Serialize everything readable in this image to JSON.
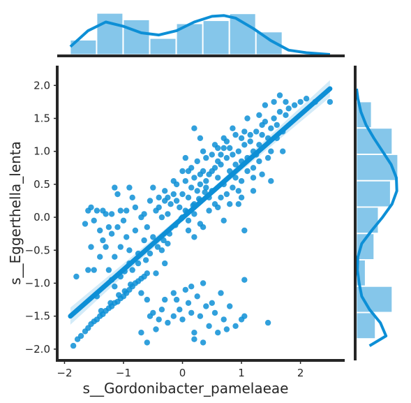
{
  "colors": {
    "accent": "#0d8fd6",
    "histogram_fill": "#85c6ea",
    "axis": "#262626"
  },
  "chart_data": {
    "type": "scatter",
    "kind": "jointplot-regression",
    "xlabel": "s__Gordonibacter_pamelaeae",
    "ylabel": "s__Eggerthella_lenta",
    "xlim": [
      -2.1,
      2.75
    ],
    "ylim": [
      -2.15,
      2.3
    ],
    "x_ticks": [
      -2,
      -1,
      0,
      1,
      2
    ],
    "y_ticks": [
      -2.0,
      -1.5,
      -1.0,
      -0.5,
      0.0,
      0.5,
      1.0,
      1.5,
      2.0
    ],
    "x_tick_labels": [
      "−2",
      "−1",
      "0",
      "1",
      "2"
    ],
    "y_tick_labels": [
      "−2.0",
      "−1.5",
      "−1.0",
      "−0.5",
      "0.0",
      "0.5",
      "1.0",
      "1.5",
      "2.0"
    ],
    "grid": false,
    "regression_line": {
      "x": [
        -1.9,
        2.5
      ],
      "y": [
        -1.5,
        1.95
      ]
    },
    "x_histogram": {
      "bin_edges": [
        -1.9,
        -1.45,
        -1.0,
        -0.55,
        -0.1,
        0.35,
        0.8,
        1.25,
        1.7
      ],
      "heights": [
        0.33,
        0.95,
        0.8,
        0.37,
        0.71,
        0.78,
        0.94,
        0.52
      ]
    },
    "x_kde": {
      "x": [
        -1.9,
        -1.6,
        -1.3,
        -1.0,
        -0.7,
        -0.4,
        -0.1,
        0.2,
        0.5,
        0.7,
        0.9,
        1.2,
        1.5,
        1.8,
        2.1,
        2.5
      ],
      "y": [
        0.18,
        0.55,
        0.75,
        0.65,
        0.5,
        0.45,
        0.55,
        0.75,
        0.88,
        0.9,
        0.84,
        0.6,
        0.32,
        0.1,
        0.04,
        0.0
      ]
    },
    "y_histogram": {
      "bin_edges": [
        -1.85,
        -1.45,
        -1.05,
        -0.65,
        -0.25,
        0.15,
        0.55,
        0.95,
        1.35,
        1.75
      ],
      "widths": [
        0.43,
        0.82,
        0.2,
        0.4,
        0.5,
        0.78,
        0.95,
        0.82,
        0.34
      ]
    },
    "y_kde": {
      "y": [
        -1.95,
        -1.8,
        -1.6,
        -1.4,
        -1.2,
        -1.0,
        -0.8,
        -0.6,
        -0.4,
        -0.2,
        0.0,
        0.2,
        0.4,
        0.6,
        0.8,
        1.0,
        1.2,
        1.4,
        1.6,
        1.8,
        1.95
      ],
      "x": [
        0.3,
        0.68,
        0.55,
        0.3,
        0.12,
        0.06,
        0.02,
        0.03,
        0.12,
        0.35,
        0.6,
        0.82,
        0.93,
        0.92,
        0.8,
        0.6,
        0.4,
        0.22,
        0.1,
        0.03,
        0.0
      ]
    },
    "points": [
      [
        -1.85,
        -1.95
      ],
      [
        -1.78,
        -1.85
      ],
      [
        -1.72,
        -1.8
      ],
      [
        -1.65,
        -1.73
      ],
      [
        -1.6,
        -1.68
      ],
      [
        -1.55,
        -1.62
      ],
      [
        -1.5,
        -1.58
      ],
      [
        -1.45,
        -1.55
      ],
      [
        -1.4,
        -1.5
      ],
      [
        -1.35,
        -1.47
      ],
      [
        -1.3,
        -1.42
      ],
      [
        -1.25,
        -1.38
      ],
      [
        -1.2,
        -1.35
      ],
      [
        -1.15,
        -1.3
      ],
      [
        -1.1,
        -1.28
      ],
      [
        -1.05,
        -1.23
      ],
      [
        -1.0,
        -1.2
      ],
      [
        -0.95,
        -1.15
      ],
      [
        -0.9,
        -1.1
      ],
      [
        -0.85,
        -1.05
      ],
      [
        -0.8,
        -1.0
      ],
      [
        -0.75,
        -0.97
      ],
      [
        -0.7,
        -0.93
      ],
      [
        -0.65,
        -0.9
      ],
      [
        -0.6,
        -0.85
      ],
      [
        -1.38,
        -1.42
      ],
      [
        -1.22,
        -1.3
      ],
      [
        -1.08,
        -1.18
      ],
      [
        -0.98,
        -1.12
      ],
      [
        -0.88,
        -1.02
      ],
      [
        -1.8,
        -0.9
      ],
      [
        -1.65,
        -0.1
      ],
      [
        -1.6,
        0.1
      ],
      [
        -1.55,
        0.15
      ],
      [
        -1.5,
        -0.05
      ],
      [
        -1.45,
        0.1
      ],
      [
        -1.4,
        -0.2
      ],
      [
        -1.35,
        0.1
      ],
      [
        -1.3,
        0.05
      ],
      [
        -1.25,
        -0.15
      ],
      [
        -1.2,
        0.05
      ],
      [
        -1.15,
        0.45
      ],
      [
        -1.1,
        0.35
      ],
      [
        -1.05,
        0.1
      ],
      [
        -1.0,
        -0.05
      ],
      [
        -0.95,
        0.1
      ],
      [
        -0.9,
        0.45
      ],
      [
        -0.85,
        0.3
      ],
      [
        -0.8,
        0.15
      ],
      [
        -0.7,
        0.0
      ],
      [
        -0.65,
        0.05
      ],
      [
        -0.6,
        -0.15
      ],
      [
        -0.55,
        0.25
      ],
      [
        -0.5,
        0.45
      ],
      [
        -0.45,
        0.1
      ],
      [
        -0.4,
        0.15
      ],
      [
        -0.35,
        0.0
      ],
      [
        -0.3,
        0.25
      ],
      [
        -0.25,
        0.05
      ],
      [
        -0.2,
        0.2
      ],
      [
        -1.55,
        -0.45
      ],
      [
        -1.5,
        -0.8
      ],
      [
        -1.4,
        -0.6
      ],
      [
        -1.3,
        -0.45
      ],
      [
        -1.2,
        -0.25
      ],
      [
        -1.15,
        -0.6
      ],
      [
        -1.1,
        -0.15
      ],
      [
        -1.05,
        -0.45
      ],
      [
        -0.95,
        -0.3
      ],
      [
        -0.9,
        -0.5
      ],
      [
        -0.8,
        -0.2
      ],
      [
        -0.75,
        -0.55
      ],
      [
        -0.65,
        -0.35
      ],
      [
        -0.5,
        -0.3
      ],
      [
        -0.35,
        -0.5
      ],
      [
        -0.3,
        -0.7
      ],
      [
        -0.25,
        -0.4
      ],
      [
        -0.45,
        -0.85
      ],
      [
        -1.6,
        -0.8
      ],
      [
        -1.35,
        -0.35
      ],
      [
        0.0,
        0.35
      ],
      [
        0.05,
        0.55
      ],
      [
        0.1,
        0.3
      ],
      [
        0.15,
        0.45
      ],
      [
        0.2,
        0.6
      ],
      [
        0.25,
        0.4
      ],
      [
        0.3,
        0.5
      ],
      [
        0.35,
        0.7
      ],
      [
        0.4,
        0.55
      ],
      [
        0.45,
        0.65
      ],
      [
        0.5,
        0.4
      ],
      [
        0.55,
        0.75
      ],
      [
        0.6,
        0.6
      ],
      [
        0.65,
        0.8
      ],
      [
        0.7,
        0.5
      ],
      [
        0.75,
        0.9
      ],
      [
        0.8,
        0.7
      ],
      [
        0.85,
        0.95
      ],
      [
        0.9,
        0.8
      ],
      [
        0.95,
        1.0
      ],
      [
        1.0,
        0.85
      ],
      [
        1.05,
        1.1
      ],
      [
        1.1,
        0.9
      ],
      [
        1.15,
        1.15
      ],
      [
        1.2,
        1.0
      ],
      [
        1.25,
        1.3
      ],
      [
        1.3,
        1.1
      ],
      [
        1.35,
        1.25
      ],
      [
        1.4,
        1.45
      ],
      [
        1.45,
        1.2
      ],
      [
        1.5,
        1.35
      ],
      [
        1.55,
        1.5
      ],
      [
        1.6,
        1.4
      ],
      [
        1.65,
        1.6
      ],
      [
        1.7,
        1.3
      ],
      [
        1.75,
        1.55
      ],
      [
        1.8,
        1.65
      ],
      [
        1.9,
        1.7
      ],
      [
        2.0,
        1.75
      ],
      [
        2.1,
        1.8
      ],
      [
        2.25,
        1.75
      ],
      [
        2.5,
        1.75
      ],
      [
        0.1,
        0.7
      ],
      [
        0.2,
        0.2
      ],
      [
        0.3,
        0.25
      ],
      [
        0.4,
        0.9
      ],
      [
        0.5,
        0.95
      ],
      [
        0.6,
        1.05
      ],
      [
        0.7,
        1.2
      ],
      [
        0.8,
        1.05
      ],
      [
        0.9,
        0.6
      ],
      [
        1.0,
        0.55
      ],
      [
        1.1,
        0.7
      ],
      [
        1.2,
        0.75
      ],
      [
        1.3,
        0.85
      ],
      [
        0.35,
        1.0
      ],
      [
        0.55,
        0.2
      ],
      [
        0.65,
        0.3
      ],
      [
        0.75,
        0.35
      ],
      [
        0.85,
        0.45
      ],
      [
        0.95,
        0.4
      ],
      [
        0.25,
        0.85
      ],
      [
        0.45,
        0.3
      ],
      [
        0.15,
        0.75
      ],
      [
        -0.1,
        0.5
      ],
      [
        -0.15,
        0.55
      ],
      [
        0.0,
        0.7
      ],
      [
        0.05,
        0.1
      ],
      [
        0.1,
        -0.05
      ],
      [
        0.2,
        0.05
      ],
      [
        0.3,
        -0.1
      ],
      [
        0.45,
        0.1
      ],
      [
        0.6,
        0.15
      ],
      [
        0.7,
        -0.05
      ],
      [
        0.8,
        0.2
      ],
      [
        1.0,
        0.3
      ],
      [
        1.2,
        0.4
      ],
      [
        1.35,
        0.65
      ],
      [
        1.5,
        1.0
      ],
      [
        1.6,
        1.2
      ],
      [
        1.45,
        0.9
      ],
      [
        1.25,
        0.95
      ],
      [
        1.15,
        1.25
      ],
      [
        1.05,
        1.3
      ],
      [
        0.9,
        1.25
      ],
      [
        0.75,
        1.15
      ],
      [
        0.6,
        0.85
      ],
      [
        0.5,
        0.7
      ],
      [
        0.4,
        0.45
      ],
      [
        0.3,
        0.65
      ],
      [
        1.3,
        1.55
      ],
      [
        1.4,
        1.7
      ],
      [
        1.55,
        1.75
      ],
      [
        1.65,
        1.85
      ],
      [
        1.75,
        1.75
      ],
      [
        1.1,
        1.5
      ],
      [
        1.35,
        1.4
      ],
      [
        1.0,
        1.2
      ],
      [
        0.85,
        1.35
      ],
      [
        0.7,
        1.05
      ],
      [
        1.5,
        0.55
      ],
      [
        1.7,
        1.0
      ],
      [
        1.2,
        0.6
      ],
      [
        0.95,
        0.2
      ],
      [
        1.05,
        -0.2
      ],
      [
        0.3,
        1.2
      ],
      [
        0.2,
        1.35
      ],
      [
        0.05,
        0.9
      ],
      [
        0.55,
        1.1
      ],
      [
        0.65,
        0.95
      ],
      [
        -0.7,
        -1.15
      ],
      [
        -0.6,
        -1.25
      ],
      [
        -0.55,
        -1.5
      ],
      [
        -0.45,
        -1.7
      ],
      [
        -0.35,
        -1.4
      ],
      [
        -0.25,
        -1.6
      ],
      [
        -0.15,
        -1.5
      ],
      [
        -0.1,
        -1.25
      ],
      [
        -0.05,
        -1.4
      ],
      [
        0.0,
        -1.55
      ],
      [
        0.05,
        -1.1
      ],
      [
        0.1,
        -1.3
      ],
      [
        0.15,
        -1.45
      ],
      [
        0.2,
        -1.75
      ],
      [
        0.25,
        -1.2
      ],
      [
        0.3,
        -1.5
      ],
      [
        0.35,
        -1.0
      ],
      [
        0.4,
        -1.35
      ],
      [
        0.45,
        -1.65
      ],
      [
        0.5,
        -1.3
      ],
      [
        0.55,
        -1.45
      ],
      [
        0.65,
        -1.15
      ],
      [
        0.7,
        -1.55
      ],
      [
        0.8,
        -1.35
      ],
      [
        0.9,
        -1.65
      ],
      [
        1.05,
        -1.5
      ],
      [
        1.05,
        -0.95
      ],
      [
        1.45,
        -1.6
      ],
      [
        0.35,
        -1.9
      ],
      [
        0.2,
        -1.85
      ],
      [
        -0.7,
        -1.75
      ],
      [
        -0.6,
        -1.9
      ],
      [
        -0.5,
        -1.45
      ],
      [
        -0.3,
        -1.25
      ],
      [
        -0.15,
        -1.15
      ],
      [
        0.15,
        -1.05
      ],
      [
        0.75,
        -1.7
      ],
      [
        1.0,
        -1.55
      ],
      [
        0.6,
        -1.75
      ],
      [
        -0.4,
        -1.55
      ],
      [
        -0.9,
        -0.7
      ],
      [
        -1.05,
        -0.9
      ],
      [
        -1.25,
        -0.8
      ],
      [
        -1.15,
        -1.05
      ],
      [
        -0.85,
        -0.8
      ],
      [
        -0.75,
        -0.7
      ],
      [
        -1.45,
        -1.2
      ],
      [
        -1.2,
        -0.95
      ],
      [
        -0.98,
        -0.82
      ],
      [
        -0.62,
        -0.65
      ],
      [
        -0.55,
        -0.55
      ],
      [
        -0.42,
        -0.45
      ],
      [
        -0.32,
        -0.35
      ],
      [
        -0.22,
        -0.25
      ],
      [
        -0.12,
        -0.12
      ],
      [
        -0.02,
        -0.02
      ],
      [
        0.08,
        0.08
      ],
      [
        0.18,
        0.18
      ],
      [
        0.28,
        0.28
      ],
      [
        0.38,
        0.38
      ],
      [
        -0.15,
        0.35
      ],
      [
        -0.1,
        0.25
      ],
      [
        -0.25,
        0.3
      ],
      [
        -0.3,
        0.4
      ],
      [
        -0.4,
        0.3
      ],
      [
        -0.05,
        0.15
      ],
      [
        0.0,
        0.0
      ],
      [
        0.1,
        -0.2
      ],
      [
        0.2,
        -0.3
      ],
      [
        0.35,
        -0.15
      ]
    ]
  }
}
